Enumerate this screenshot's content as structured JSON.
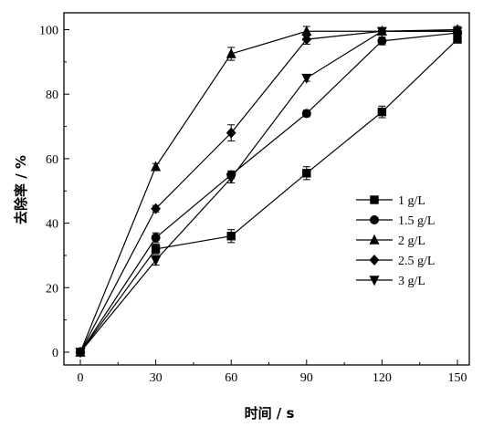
{
  "chart_data": {
    "type": "line",
    "xlabel": "时间 / s",
    "ylabel": "去除率 / %",
    "xlim": [
      0,
      150
    ],
    "ylim": [
      0,
      100
    ],
    "xticks": [
      0,
      30,
      60,
      90,
      120,
      150
    ],
    "yticks": [
      0,
      20,
      40,
      60,
      80,
      100
    ],
    "grid": false,
    "legend_position": "center-right",
    "x": [
      0,
      30,
      60,
      90,
      120,
      150
    ],
    "series": [
      {
        "name": "1 g/L",
        "marker": "square",
        "values": [
          0,
          32,
          36,
          55.5,
          74.5,
          97
        ],
        "errors": [
          0.8,
          1.5,
          2,
          2,
          1.8,
          1
        ]
      },
      {
        "name": "1.5 g/L",
        "marker": "circle",
        "values": [
          0,
          35.5,
          55,
          74,
          96.5,
          99
        ],
        "errors": [
          0.8,
          1.5,
          1.2,
          1,
          1.2,
          1
        ]
      },
      {
        "name": "2 g/L",
        "marker": "triangle-up",
        "values": [
          0,
          57.5,
          92.5,
          99.5,
          99.5,
          100
        ],
        "errors": [
          0.8,
          1,
          2,
          1.5,
          1,
          1
        ]
      },
      {
        "name": "2.5 g/L",
        "marker": "diamond",
        "values": [
          0,
          44.5,
          68,
          97,
          99.5,
          99.5
        ],
        "errors": [
          0.8,
          1,
          2.5,
          1.5,
          1,
          1
        ]
      },
      {
        "name": "3 g/L",
        "marker": "triangle-down",
        "values": [
          0,
          28.5,
          54,
          85,
          99.5,
          99.5
        ],
        "errors": [
          0.8,
          1.5,
          1.5,
          1,
          1,
          1
        ]
      }
    ]
  }
}
